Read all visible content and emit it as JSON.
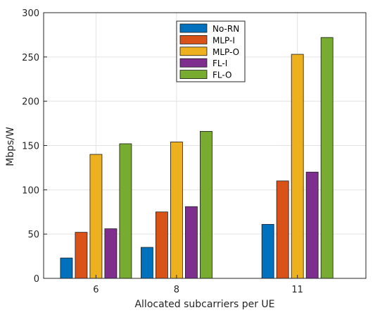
{
  "chart_data": {
    "type": "bar",
    "x": [
      6,
      8,
      11
    ],
    "categories": [
      "6",
      "8",
      "11"
    ],
    "series": [
      {
        "name": "No-RN",
        "color": "#0072BD",
        "values": [
          23,
          35,
          61
        ]
      },
      {
        "name": "MLP-I",
        "color": "#D95319",
        "values": [
          52,
          75,
          110
        ]
      },
      {
        "name": "MLP-O",
        "color": "#EDB120",
        "values": [
          140,
          154,
          253
        ]
      },
      {
        "name": "FL-I",
        "color": "#7E2F8E",
        "values": [
          56,
          81,
          120
        ]
      },
      {
        "name": "FL-O",
        "color": "#77AC30",
        "values": [
          152,
          166,
          272
        ]
      }
    ],
    "xlim": [
      4.7,
      12.7
    ],
    "ylim": [
      0,
      300
    ],
    "yticks": [
      0,
      50,
      100,
      150,
      200,
      250,
      300
    ],
    "xlabel": "Allocated subcarriers per UE",
    "ylabel": "Mbps/W",
    "title": "",
    "legend_position": "top-center",
    "grid": true
  }
}
